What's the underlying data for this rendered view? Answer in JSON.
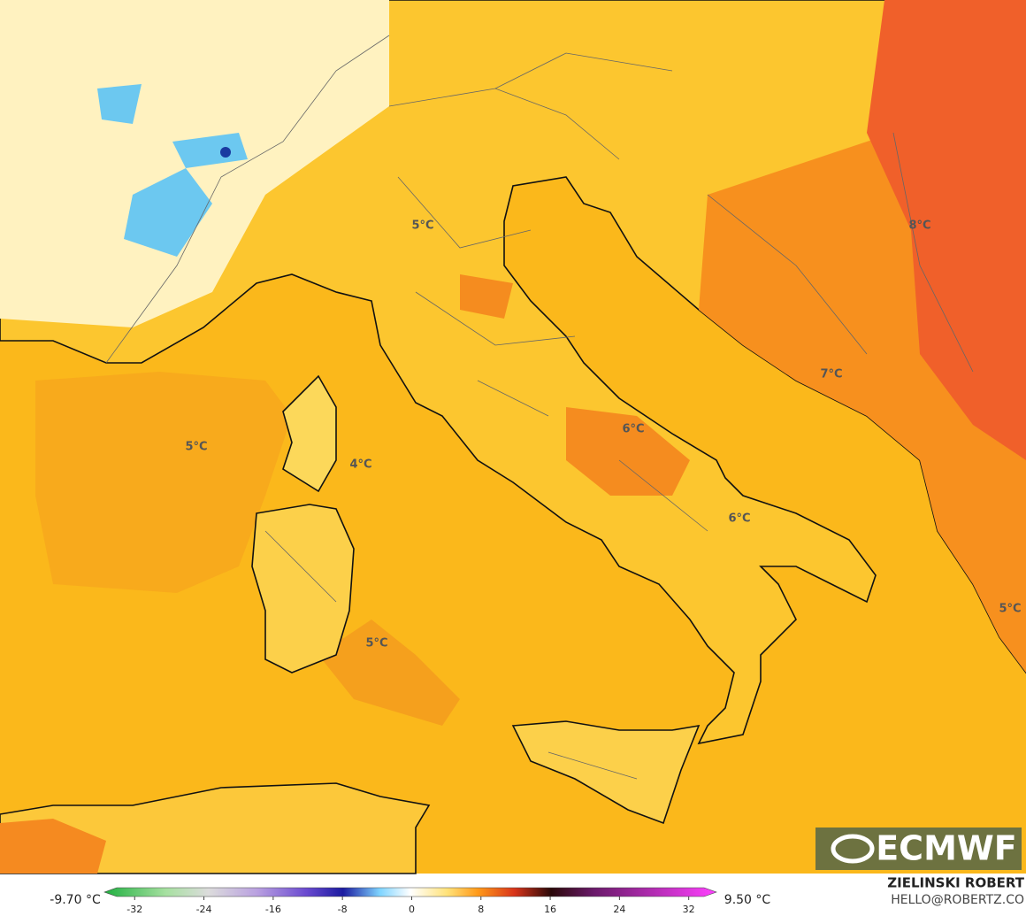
{
  "map": {
    "labels": [
      "5°C",
      "5°C",
      "4°C",
      "6°C",
      "6°C",
      "8°C",
      "7°C",
      "5°C",
      "5°C"
    ],
    "logo": "ECMWF",
    "colorbar": {
      "min_label": "-9.70 °C",
      "max_label": "9.50 °C",
      "ticks": [
        -32,
        -24,
        -16,
        -8,
        0,
        8,
        16,
        24,
        32
      ],
      "lim": [
        -35.5,
        35.2
      ]
    },
    "credit": {
      "name": "ZIELINSKI ROBERT",
      "contact": "HELLO@ROBERTZ.CO"
    }
  }
}
